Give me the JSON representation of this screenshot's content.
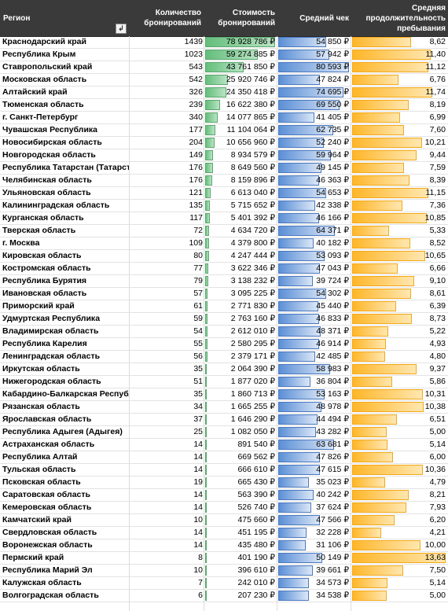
{
  "header": {
    "region": "Регион",
    "count_line1": "Количество",
    "count_line2": "бронирований",
    "cost_line1": "Стоимость",
    "cost_line2": "бронирований",
    "avg_check": "Средний чек",
    "stay_line1": "Средняя",
    "stay_line2": "продолжительность",
    "stay_line3": "пребывания",
    "filter_icon": "sort-filter-icon",
    "filter_symbol": "↲"
  },
  "colors": {
    "header_bg": "#3a3a3a",
    "cost_bar": "#63be7b",
    "avg_bar": "#5b8fd6",
    "stay_bar": "#ffb628"
  },
  "scale": {
    "cost_max": 78928786,
    "avg_max": 80593,
    "stay_max": 13.63
  },
  "rows": [
    {
      "region": "Краснодарский край",
      "count": "1439",
      "cost": "78 928 786 ₽",
      "cost_num": 78928786,
      "avg": "54 850 ₽",
      "avg_num": 54850,
      "stay": "8,62",
      "stay_num": 8.62
    },
    {
      "region": "Республика Крым",
      "count": "1023",
      "cost": "59 274 885 ₽",
      "cost_num": 59274885,
      "avg": "57 942 ₽",
      "avg_num": 57942,
      "stay": "11,40",
      "stay_num": 11.4
    },
    {
      "region": "Ставропольский край",
      "count": "543",
      "cost": "43 761 850 ₽",
      "cost_num": 43761850,
      "avg": "80 593 ₽",
      "avg_num": 80593,
      "stay": "11,12",
      "stay_num": 11.12
    },
    {
      "region": "Московская область",
      "count": "542",
      "cost": "25 920 746 ₽",
      "cost_num": 25920746,
      "avg": "47 824 ₽",
      "avg_num": 47824,
      "stay": "6,76",
      "stay_num": 6.76
    },
    {
      "region": "Алтайский край",
      "count": "326",
      "cost": "24 350 418 ₽",
      "cost_num": 24350418,
      "avg": "74 695 ₽",
      "avg_num": 74695,
      "stay": "11,74",
      "stay_num": 11.74
    },
    {
      "region": "Тюменская область",
      "count": "239",
      "cost": "16 622 380 ₽",
      "cost_num": 16622380,
      "avg": "69 550 ₽",
      "avg_num": 69550,
      "stay": "8,19",
      "stay_num": 8.19
    },
    {
      "region": "г. Санкт-Петербург",
      "count": "340",
      "cost": "14 077 865 ₽",
      "cost_num": 14077865,
      "avg": "41 405 ₽",
      "avg_num": 41405,
      "stay": "6,99",
      "stay_num": 6.99
    },
    {
      "region": "Чувашская Республика",
      "count": "177",
      "cost": "11 104 064 ₽",
      "cost_num": 11104064,
      "avg": "62 735 ₽",
      "avg_num": 62735,
      "stay": "7,60",
      "stay_num": 7.6
    },
    {
      "region": "Новосибирская область",
      "count": "204",
      "cost": "10 656 960 ₽",
      "cost_num": 10656960,
      "avg": "52 240 ₽",
      "avg_num": 52240,
      "stay": "10,21",
      "stay_num": 10.21
    },
    {
      "region": "Новгородская область",
      "count": "149",
      "cost": "8 934 579 ₽",
      "cost_num": 8934579,
      "avg": "59 964 ₽",
      "avg_num": 59964,
      "stay": "9,44",
      "stay_num": 9.44
    },
    {
      "region": "Республика Татарстан (Татарстан)",
      "count": "176",
      "cost": "8 649 560 ₽",
      "cost_num": 8649560,
      "avg": "49 145 ₽",
      "avg_num": 49145,
      "stay": "7,59",
      "stay_num": 7.59
    },
    {
      "region": "Челябинская область",
      "count": "176",
      "cost": "8 159 896 ₽",
      "cost_num": 8159896,
      "avg": "46 363 ₽",
      "avg_num": 46363,
      "stay": "8,39",
      "stay_num": 8.39
    },
    {
      "region": "Ульяновская область",
      "count": "121",
      "cost": "6 613 040 ₽",
      "cost_num": 6613040,
      "avg": "54 653 ₽",
      "avg_num": 54653,
      "stay": "11,15",
      "stay_num": 11.15
    },
    {
      "region": "Калининградская область",
      "count": "135",
      "cost": "5 715 652 ₽",
      "cost_num": 5715652,
      "avg": "42 338 ₽",
      "avg_num": 42338,
      "stay": "7,36",
      "stay_num": 7.36
    },
    {
      "region": "Курганская область",
      "count": "117",
      "cost": "5 401 392 ₽",
      "cost_num": 5401392,
      "avg": "46 166 ₽",
      "avg_num": 46166,
      "stay": "10,85",
      "stay_num": 10.85
    },
    {
      "region": "Тверская область",
      "count": "72",
      "cost": "4 634 720 ₽",
      "cost_num": 4634720,
      "avg": "64 371 ₽",
      "avg_num": 64371,
      "stay": "5,33",
      "stay_num": 5.33
    },
    {
      "region": "г. Москва",
      "count": "109",
      "cost": "4 379 800 ₽",
      "cost_num": 4379800,
      "avg": "40 182 ₽",
      "avg_num": 40182,
      "stay": "8,52",
      "stay_num": 8.52
    },
    {
      "region": "Кировская область",
      "count": "80",
      "cost": "4 247 444 ₽",
      "cost_num": 4247444,
      "avg": "53 093 ₽",
      "avg_num": 53093,
      "stay": "10,65",
      "stay_num": 10.65
    },
    {
      "region": "Костромская область",
      "count": "77",
      "cost": "3 622 346 ₽",
      "cost_num": 3622346,
      "avg": "47 043 ₽",
      "avg_num": 47043,
      "stay": "6,66",
      "stay_num": 6.66
    },
    {
      "region": "Республика Бурятия",
      "count": "79",
      "cost": "3 138 232 ₽",
      "cost_num": 3138232,
      "avg": "39 724 ₽",
      "avg_num": 39724,
      "stay": "9,10",
      "stay_num": 9.1
    },
    {
      "region": "Ивановская область",
      "count": "57",
      "cost": "3 095 225 ₽",
      "cost_num": 3095225,
      "avg": "54 302 ₽",
      "avg_num": 54302,
      "stay": "8,61",
      "stay_num": 8.61
    },
    {
      "region": "Приморский край",
      "count": "61",
      "cost": "2 771 830 ₽",
      "cost_num": 2771830,
      "avg": "45 440 ₽",
      "avg_num": 45440,
      "stay": "6,39",
      "stay_num": 6.39
    },
    {
      "region": "Удмуртская Республика",
      "count": "59",
      "cost": "2 763 160 ₽",
      "cost_num": 2763160,
      "avg": "46 833 ₽",
      "avg_num": 46833,
      "stay": "8,73",
      "stay_num": 8.73
    },
    {
      "region": "Владимирская область",
      "count": "54",
      "cost": "2 612 010 ₽",
      "cost_num": 2612010,
      "avg": "48 371 ₽",
      "avg_num": 48371,
      "stay": "5,22",
      "stay_num": 5.22
    },
    {
      "region": "Республика Карелия",
      "count": "55",
      "cost": "2 580 295 ₽",
      "cost_num": 2580295,
      "avg": "46 914 ₽",
      "avg_num": 46914,
      "stay": "4,93",
      "stay_num": 4.93
    },
    {
      "region": "Ленинградская область",
      "count": "56",
      "cost": "2 379 171 ₽",
      "cost_num": 2379171,
      "avg": "42 485 ₽",
      "avg_num": 42485,
      "stay": "4,80",
      "stay_num": 4.8
    },
    {
      "region": "Иркутская область",
      "count": "35",
      "cost": "2 064 390 ₽",
      "cost_num": 2064390,
      "avg": "58 983 ₽",
      "avg_num": 58983,
      "stay": "9,37",
      "stay_num": 9.37
    },
    {
      "region": "Нижегородская область",
      "count": "51",
      "cost": "1 877 020 ₽",
      "cost_num": 1877020,
      "avg": "36 804 ₽",
      "avg_num": 36804,
      "stay": "5,86",
      "stay_num": 5.86
    },
    {
      "region": "Кабардино-Балкарская Республика",
      "count": "35",
      "cost": "1 860 713 ₽",
      "cost_num": 1860713,
      "avg": "53 163 ₽",
      "avg_num": 53163,
      "stay": "10,31",
      "stay_num": 10.31
    },
    {
      "region": "Рязанская область",
      "count": "34",
      "cost": "1 665 255 ₽",
      "cost_num": 1665255,
      "avg": "48 978 ₽",
      "avg_num": 48978,
      "stay": "10,38",
      "stay_num": 10.38
    },
    {
      "region": "Ярославская область",
      "count": "37",
      "cost": "1 646 290 ₽",
      "cost_num": 1646290,
      "avg": "44 494 ₽",
      "avg_num": 44494,
      "stay": "6,51",
      "stay_num": 6.51
    },
    {
      "region": "Республика Адыгея (Адыгея)",
      "count": "25",
      "cost": "1 082 050 ₽",
      "cost_num": 1082050,
      "avg": "43 282 ₽",
      "avg_num": 43282,
      "stay": "5,00",
      "stay_num": 5.0
    },
    {
      "region": "Астраханская область",
      "count": "14",
      "cost": "891 540 ₽",
      "cost_num": 891540,
      "avg": "63 681 ₽",
      "avg_num": 63681,
      "stay": "5,14",
      "stay_num": 5.14
    },
    {
      "region": "Республика Алтай",
      "count": "14",
      "cost": "669 562 ₽",
      "cost_num": 669562,
      "avg": "47 826 ₽",
      "avg_num": 47826,
      "stay": "6,00",
      "stay_num": 6.0
    },
    {
      "region": "Тульская область",
      "count": "14",
      "cost": "666 610 ₽",
      "cost_num": 666610,
      "avg": "47 615 ₽",
      "avg_num": 47615,
      "stay": "10,36",
      "stay_num": 10.36
    },
    {
      "region": "Псковская область",
      "count": "19",
      "cost": "665 430 ₽",
      "cost_num": 665430,
      "avg": "35 023 ₽",
      "avg_num": 35023,
      "stay": "4,79",
      "stay_num": 4.79
    },
    {
      "region": "Саратовская область",
      "count": "14",
      "cost": "563 390 ₽",
      "cost_num": 563390,
      "avg": "40 242 ₽",
      "avg_num": 40242,
      "stay": "8,21",
      "stay_num": 8.21
    },
    {
      "region": "Кемеровская область",
      "count": "14",
      "cost": "526 740 ₽",
      "cost_num": 526740,
      "avg": "37 624 ₽",
      "avg_num": 37624,
      "stay": "7,93",
      "stay_num": 7.93
    },
    {
      "region": "Камчатский край",
      "count": "10",
      "cost": "475 660 ₽",
      "cost_num": 475660,
      "avg": "47 566 ₽",
      "avg_num": 47566,
      "stay": "6,20",
      "stay_num": 6.2
    },
    {
      "region": "Свердловская область",
      "count": "14",
      "cost": "451 195 ₽",
      "cost_num": 451195,
      "avg": "32 228 ₽",
      "avg_num": 32228,
      "stay": "4,21",
      "stay_num": 4.21
    },
    {
      "region": "Воронежская область",
      "count": "14",
      "cost": "435 480 ₽",
      "cost_num": 435480,
      "avg": "31 106 ₽",
      "avg_num": 31106,
      "stay": "10,00",
      "stay_num": 10.0
    },
    {
      "region": "Пермский край",
      "count": "8",
      "cost": "401 190 ₽",
      "cost_num": 401190,
      "avg": "50 149 ₽",
      "avg_num": 50149,
      "stay": "13,63",
      "stay_num": 13.63
    },
    {
      "region": "Республика Марий Эл",
      "count": "10",
      "cost": "396 610 ₽",
      "cost_num": 396610,
      "avg": "39 661 ₽",
      "avg_num": 39661,
      "stay": "7,50",
      "stay_num": 7.5
    },
    {
      "region": "Калужская область",
      "count": "7",
      "cost": "242 010 ₽",
      "cost_num": 242010,
      "avg": "34 573 ₽",
      "avg_num": 34573,
      "stay": "5,14",
      "stay_num": 5.14
    },
    {
      "region": "Волгоградская область",
      "count": "6",
      "cost": "207 230 ₽",
      "cost_num": 207230,
      "avg": "34 538 ₽",
      "avg_num": 34538,
      "stay": "5,00",
      "stay_num": 5.0
    }
  ]
}
